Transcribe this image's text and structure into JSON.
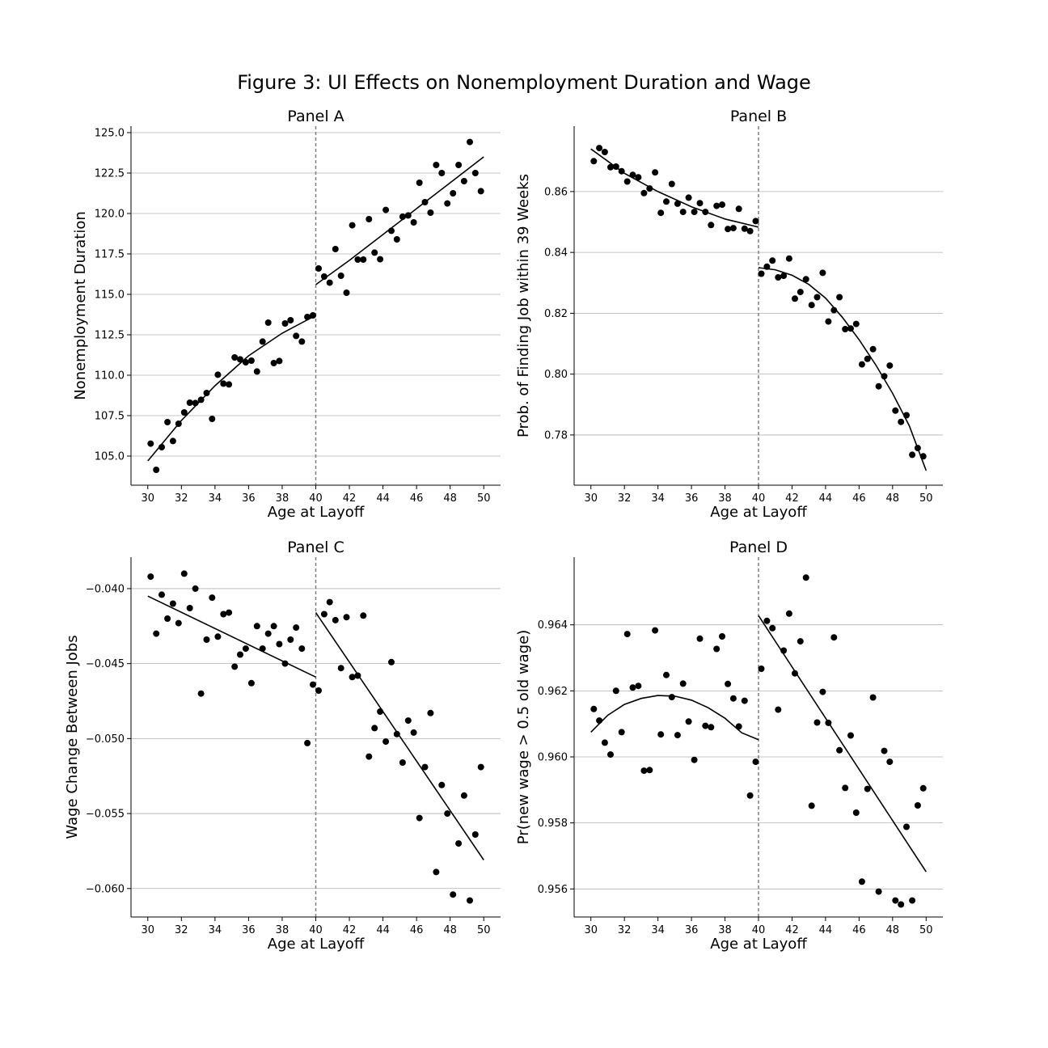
{
  "figure": {
    "title": "Figure 3: UI Effects on Nonemployment Duration and Wage"
  },
  "colors": {
    "points": "#000000",
    "fit": "#000000",
    "grid": "#b0b0b0",
    "cutoff": "#808080"
  },
  "chart_data": [
    {
      "id": "A",
      "type": "scatter",
      "title": "Panel A",
      "xlabel": "Age at Layoff",
      "ylabel": "Nonemployment Duration",
      "xlim": [
        29,
        51
      ],
      "ylim": [
        103.2,
        125.4
      ],
      "xticks": [
        30,
        32,
        34,
        36,
        38,
        40,
        42,
        44,
        46,
        48,
        50
      ],
      "yticks": [
        105.0,
        107.5,
        110.0,
        112.5,
        115.0,
        117.5,
        120.0,
        122.5,
        125.0
      ],
      "ytick_labels": [
        "105.0",
        "107.5",
        "110.0",
        "112.5",
        "115.0",
        "117.5",
        "120.0",
        "122.5",
        "125.0"
      ],
      "grid": "y",
      "cutoff": 40,
      "points": [
        [
          30.17,
          105.77
        ],
        [
          30.5,
          104.15
        ],
        [
          30.83,
          105.55
        ],
        [
          31.17,
          107.1
        ],
        [
          31.5,
          105.93
        ],
        [
          31.83,
          107.0
        ],
        [
          32.17,
          107.7
        ],
        [
          32.5,
          108.3
        ],
        [
          32.83,
          108.28
        ],
        [
          33.17,
          108.48
        ],
        [
          33.5,
          108.9
        ],
        [
          33.83,
          107.3
        ],
        [
          34.17,
          110.03
        ],
        [
          34.5,
          109.48
        ],
        [
          34.83,
          109.43
        ],
        [
          35.17,
          111.1
        ],
        [
          35.5,
          110.98
        ],
        [
          35.83,
          110.8
        ],
        [
          36.17,
          110.9
        ],
        [
          36.5,
          110.23
        ],
        [
          36.83,
          112.08
        ],
        [
          37.17,
          113.25
        ],
        [
          37.5,
          110.75
        ],
        [
          37.83,
          110.88
        ],
        [
          38.17,
          113.2
        ],
        [
          38.5,
          113.4
        ],
        [
          38.83,
          112.43
        ],
        [
          39.17,
          112.08
        ],
        [
          39.5,
          113.6
        ],
        [
          39.83,
          113.7
        ],
        [
          40.17,
          116.6
        ],
        [
          40.5,
          116.1
        ],
        [
          40.83,
          115.72
        ],
        [
          41.17,
          117.8
        ],
        [
          41.5,
          116.15
        ],
        [
          41.83,
          115.1
        ],
        [
          42.17,
          119.27
        ],
        [
          42.5,
          117.15
        ],
        [
          42.83,
          117.15
        ],
        [
          43.17,
          119.65
        ],
        [
          43.5,
          117.58
        ],
        [
          43.83,
          117.17
        ],
        [
          44.17,
          120.22
        ],
        [
          44.5,
          118.93
        ],
        [
          44.83,
          118.4
        ],
        [
          45.17,
          119.8
        ],
        [
          45.5,
          119.88
        ],
        [
          45.83,
          119.45
        ],
        [
          46.17,
          121.9
        ],
        [
          46.5,
          120.7
        ],
        [
          46.83,
          120.05
        ],
        [
          47.17,
          123.0
        ],
        [
          47.5,
          122.5
        ],
        [
          47.83,
          120.62
        ],
        [
          48.17,
          121.25
        ],
        [
          48.5,
          123.0
        ],
        [
          48.83,
          122.0
        ],
        [
          49.17,
          124.42
        ],
        [
          49.5,
          122.5
        ],
        [
          49.83,
          121.38
        ]
      ],
      "fit": [
        {
          "x": [
            30,
            32,
            34,
            36,
            38,
            40
          ],
          "y": [
            104.7,
            107.2,
            109.35,
            111.2,
            112.6,
            113.7
          ]
        },
        {
          "x": [
            40,
            42,
            44,
            46,
            48,
            50
          ],
          "y": [
            115.6,
            117.1,
            118.7,
            120.3,
            121.9,
            123.5
          ]
        }
      ]
    },
    {
      "id": "B",
      "type": "scatter",
      "title": "Panel B",
      "xlabel": "Age at Layoff",
      "ylabel": "Prob. of Finding Job within 39 Weeks",
      "xlim": [
        29,
        51
      ],
      "ylim": [
        0.7635,
        0.8815
      ],
      "xticks": [
        30,
        32,
        34,
        36,
        38,
        40,
        42,
        44,
        46,
        48,
        50
      ],
      "yticks": [
        0.78,
        0.8,
        0.82,
        0.84,
        0.86
      ],
      "ytick_labels": [
        "0.78",
        "0.80",
        "0.82",
        "0.84",
        "0.86"
      ],
      "grid": "y",
      "cutoff": 40,
      "points": [
        [
          30.17,
          0.87
        ],
        [
          30.5,
          0.8743
        ],
        [
          30.83,
          0.873
        ],
        [
          31.17,
          0.868
        ],
        [
          31.5,
          0.8682
        ],
        [
          31.83,
          0.8667
        ],
        [
          32.17,
          0.8633
        ],
        [
          32.5,
          0.8655
        ],
        [
          32.83,
          0.8647
        ],
        [
          33.17,
          0.8595
        ],
        [
          33.5,
          0.861
        ],
        [
          33.83,
          0.8663
        ],
        [
          34.17,
          0.853
        ],
        [
          34.5,
          0.8567
        ],
        [
          34.83,
          0.8625
        ],
        [
          35.17,
          0.856
        ],
        [
          35.5,
          0.8533
        ],
        [
          35.83,
          0.858
        ],
        [
          36.17,
          0.8533
        ],
        [
          36.5,
          0.8562
        ],
        [
          36.83,
          0.8533
        ],
        [
          37.17,
          0.849
        ],
        [
          37.5,
          0.8553
        ],
        [
          37.83,
          0.8557
        ],
        [
          38.17,
          0.8477
        ],
        [
          38.5,
          0.848
        ],
        [
          38.83,
          0.8543
        ],
        [
          39.17,
          0.8478
        ],
        [
          39.5,
          0.847
        ],
        [
          39.83,
          0.8503
        ],
        [
          40.17,
          0.833
        ],
        [
          40.5,
          0.8353
        ],
        [
          40.83,
          0.8373
        ],
        [
          41.17,
          0.8318
        ],
        [
          41.5,
          0.8323
        ],
        [
          41.83,
          0.838
        ],
        [
          42.17,
          0.8248
        ],
        [
          42.5,
          0.827
        ],
        [
          42.83,
          0.8312
        ],
        [
          43.17,
          0.8227
        ],
        [
          43.5,
          0.8253
        ],
        [
          43.83,
          0.8333
        ],
        [
          44.17,
          0.8173
        ],
        [
          44.5,
          0.821
        ],
        [
          44.83,
          0.8253
        ],
        [
          45.17,
          0.8148
        ],
        [
          45.5,
          0.815
        ],
        [
          45.83,
          0.8165
        ],
        [
          46.17,
          0.8032
        ],
        [
          46.5,
          0.805
        ],
        [
          46.83,
          0.8082
        ],
        [
          47.17,
          0.796
        ],
        [
          47.5,
          0.7993
        ],
        [
          47.83,
          0.8028
        ],
        [
          48.17,
          0.788
        ],
        [
          48.5,
          0.7843
        ],
        [
          48.83,
          0.7865
        ],
        [
          49.17,
          0.7735
        ],
        [
          49.5,
          0.7757
        ],
        [
          49.83,
          0.773
        ]
      ],
      "fit": [
        {
          "x": [
            30,
            32,
            34,
            36,
            38,
            40
          ],
          "y": [
            0.874,
            0.866,
            0.86,
            0.855,
            0.851,
            0.8483
          ]
        },
        {
          "x": [
            40,
            41,
            42,
            43,
            44,
            45,
            46,
            47,
            48,
            49,
            50
          ],
          "y": [
            0.835,
            0.8343,
            0.8325,
            0.8295,
            0.825,
            0.8187,
            0.8113,
            0.803,
            0.7937,
            0.783,
            0.7683
          ]
        }
      ]
    },
    {
      "id": "C",
      "type": "scatter",
      "title": "Panel C",
      "xlabel": "Age at Layoff",
      "ylabel": "Wage Change Between Jobs",
      "xlim": [
        29,
        51
      ],
      "ylim": [
        -0.0619,
        -0.0379
      ],
      "xticks": [
        30,
        32,
        34,
        36,
        38,
        40,
        42,
        44,
        46,
        48,
        50
      ],
      "yticks": [
        -0.06,
        -0.055,
        -0.05,
        -0.045,
        -0.04
      ],
      "ytick_labels": [
        "−0.060",
        "−0.055",
        "−0.050",
        "−0.045",
        "−0.040"
      ],
      "grid": "y",
      "cutoff": 40,
      "points": [
        [
          30.17,
          -0.0392
        ],
        [
          30.5,
          -0.043
        ],
        [
          30.83,
          -0.0404
        ],
        [
          31.17,
          -0.042
        ],
        [
          31.5,
          -0.041
        ],
        [
          31.83,
          -0.0423
        ],
        [
          32.17,
          -0.039
        ],
        [
          32.5,
          -0.0413
        ],
        [
          32.83,
          -0.04
        ],
        [
          33.17,
          -0.047
        ],
        [
          33.5,
          -0.0434
        ],
        [
          33.83,
          -0.0406
        ],
        [
          34.17,
          -0.0432
        ],
        [
          34.5,
          -0.0417
        ],
        [
          34.83,
          -0.0416
        ],
        [
          35.17,
          -0.0452
        ],
        [
          35.5,
          -0.0444
        ],
        [
          35.83,
          -0.044
        ],
        [
          36.17,
          -0.0463
        ],
        [
          36.5,
          -0.0425
        ],
        [
          36.83,
          -0.044
        ],
        [
          37.17,
          -0.043
        ],
        [
          37.5,
          -0.0425
        ],
        [
          37.83,
          -0.0437
        ],
        [
          38.17,
          -0.045
        ],
        [
          38.5,
          -0.0434
        ],
        [
          38.83,
          -0.0426
        ],
        [
          39.17,
          -0.044
        ],
        [
          39.5,
          -0.0503
        ],
        [
          39.83,
          -0.0464
        ],
        [
          40.17,
          -0.0468
        ],
        [
          40.5,
          -0.0417
        ],
        [
          40.83,
          -0.0409
        ],
        [
          41.17,
          -0.0421
        ],
        [
          41.5,
          -0.0453
        ],
        [
          41.83,
          -0.0419
        ],
        [
          42.17,
          -0.0459
        ],
        [
          42.5,
          -0.0458
        ],
        [
          42.83,
          -0.0418
        ],
        [
          43.17,
          -0.0512
        ],
        [
          43.5,
          -0.0493
        ],
        [
          43.83,
          -0.0482
        ],
        [
          44.17,
          -0.0502
        ],
        [
          44.5,
          -0.0449
        ],
        [
          44.83,
          -0.0497
        ],
        [
          45.17,
          -0.0516
        ],
        [
          45.5,
          -0.0488
        ],
        [
          45.83,
          -0.0496
        ],
        [
          46.17,
          -0.0553
        ],
        [
          46.5,
          -0.0519
        ],
        [
          46.83,
          -0.0483
        ],
        [
          47.17,
          -0.0589
        ],
        [
          47.5,
          -0.0531
        ],
        [
          47.83,
          -0.055
        ],
        [
          48.17,
          -0.0604
        ],
        [
          48.5,
          -0.057
        ],
        [
          48.83,
          -0.0538
        ],
        [
          49.17,
          -0.0608
        ],
        [
          49.5,
          -0.0564
        ],
        [
          49.83,
          -0.0519
        ]
      ],
      "fit": [
        {
          "x": [
            30,
            40
          ],
          "y": [
            -0.0405,
            -0.0459
          ]
        },
        {
          "x": [
            40,
            50
          ],
          "y": [
            -0.0416,
            -0.0581
          ]
        }
      ]
    },
    {
      "id": "D",
      "type": "scatter",
      "title": "Panel D",
      "xlabel": "Age at Layoff",
      "ylabel": "Pr(new wage > 0.5 old wage)",
      "xlim": [
        29,
        51
      ],
      "ylim": [
        0.95515,
        0.96605
      ],
      "xticks": [
        30,
        32,
        34,
        36,
        38,
        40,
        42,
        44,
        46,
        48,
        50
      ],
      "yticks": [
        0.956,
        0.958,
        0.96,
        0.962,
        0.964
      ],
      "ytick_labels": [
        "0.956",
        "0.958",
        "0.960",
        "0.962",
        "0.964"
      ],
      "grid": "y",
      "cutoff": 40,
      "points": [
        [
          30.17,
          0.96145
        ],
        [
          30.5,
          0.9611
        ],
        [
          30.83,
          0.96043
        ],
        [
          31.17,
          0.96007
        ],
        [
          31.5,
          0.962
        ],
        [
          31.83,
          0.96075
        ],
        [
          32.17,
          0.96372
        ],
        [
          32.5,
          0.9621
        ],
        [
          32.83,
          0.96215
        ],
        [
          33.17,
          0.95958
        ],
        [
          33.5,
          0.9596
        ],
        [
          33.83,
          0.96383
        ],
        [
          34.17,
          0.96068
        ],
        [
          34.5,
          0.96248
        ],
        [
          34.83,
          0.96181
        ],
        [
          35.17,
          0.96066
        ],
        [
          35.5,
          0.96222
        ],
        [
          35.83,
          0.96107
        ],
        [
          36.17,
          0.95991
        ],
        [
          36.5,
          0.96358
        ],
        [
          36.83,
          0.96094
        ],
        [
          37.17,
          0.9609
        ],
        [
          37.5,
          0.96327
        ],
        [
          37.83,
          0.96365
        ],
        [
          38.17,
          0.96221
        ],
        [
          38.5,
          0.96177
        ],
        [
          38.83,
          0.96092
        ],
        [
          39.17,
          0.9617
        ],
        [
          39.5,
          0.95883
        ],
        [
          39.83,
          0.95985
        ],
        [
          40.17,
          0.96267
        ],
        [
          40.5,
          0.96412
        ],
        [
          40.83,
          0.9639
        ],
        [
          41.17,
          0.96143
        ],
        [
          41.5,
          0.96322
        ],
        [
          41.83,
          0.96434
        ],
        [
          42.17,
          0.96253
        ],
        [
          42.5,
          0.9635
        ],
        [
          42.83,
          0.96543
        ],
        [
          43.17,
          0.95852
        ],
        [
          43.5,
          0.96104
        ],
        [
          43.83,
          0.96197
        ],
        [
          44.17,
          0.96103
        ],
        [
          44.5,
          0.96362
        ],
        [
          44.83,
          0.9602
        ],
        [
          45.17,
          0.95906
        ],
        [
          45.5,
          0.96065
        ],
        [
          45.83,
          0.95831
        ],
        [
          46.17,
          0.95622
        ],
        [
          46.5,
          0.95903
        ],
        [
          46.83,
          0.9618
        ],
        [
          47.17,
          0.95592
        ],
        [
          47.5,
          0.96018
        ],
        [
          47.83,
          0.95985
        ],
        [
          48.17,
          0.95565
        ],
        [
          48.5,
          0.95553
        ],
        [
          48.83,
          0.95788
        ],
        [
          49.17,
          0.95565
        ],
        [
          49.5,
          0.95853
        ],
        [
          49.83,
          0.95905
        ]
      ],
      "fit": [
        {
          "x": [
            30,
            31,
            32,
            33,
            34,
            35,
            36,
            37,
            38,
            39,
            40
          ],
          "y": [
            0.96075,
            0.96126,
            0.96159,
            0.96177,
            0.96186,
            0.96184,
            0.96172,
            0.96149,
            0.96117,
            0.96073,
            0.96052
          ]
        },
        {
          "x": [
            40,
            50
          ],
          "y": [
            0.96428,
            0.95652
          ]
        }
      ]
    }
  ]
}
